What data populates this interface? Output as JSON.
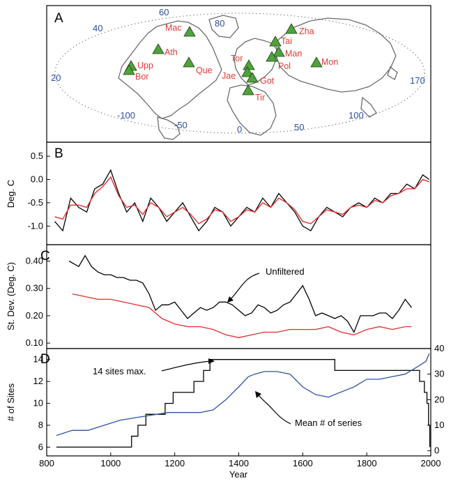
{
  "panels": {
    "a_letter": "A",
    "b_letter": "B",
    "c_letter": "C",
    "d_letter": "D"
  },
  "map": {
    "graticule_labels": [
      "60",
      "80",
      "40",
      "20",
      "170",
      "-100",
      "-50",
      "0",
      "50",
      "100"
    ],
    "sites": [
      "Mac",
      "Zha",
      "Ath",
      "Tai",
      "Man",
      "Upp",
      "Bor",
      "Que",
      "Tor",
      "Jae",
      "Pol",
      "Mon",
      "Got",
      "Tir"
    ],
    "marker_color": "#4fa33b",
    "label_color": "#e23a35",
    "number_color": "#2a4fa0"
  },
  "chart_data": [
    {
      "panel": "B",
      "type": "line",
      "ylabel": "Deg. C",
      "xlim": [
        800,
        2000
      ],
      "ylim": [
        -1.4,
        0.8
      ],
      "yticks": [
        "0.5",
        "0.0",
        "-0.5",
        "-1.0"
      ],
      "series": [
        {
          "color": "#000000",
          "x": [
            825,
            850,
            875,
            900,
            925,
            950,
            975,
            1000,
            1025,
            1050,
            1075,
            1100,
            1125,
            1150,
            1175,
            1200,
            1225,
            1250,
            1275,
            1300,
            1325,
            1350,
            1375,
            1400,
            1425,
            1450,
            1475,
            1500,
            1525,
            1550,
            1575,
            1600,
            1625,
            1650,
            1675,
            1700,
            1725,
            1750,
            1775,
            1800,
            1825,
            1850,
            1875,
            1900,
            1925,
            1950,
            1975,
            1995
          ],
          "y": [
            -0.9,
            -1.1,
            -0.4,
            -0.6,
            -0.7,
            -0.2,
            -0.1,
            0.2,
            -0.3,
            -0.7,
            -0.5,
            -0.9,
            -0.4,
            -0.6,
            -0.9,
            -0.7,
            -0.5,
            -0.8,
            -1.1,
            -0.9,
            -0.6,
            -0.7,
            -1.0,
            -0.8,
            -0.6,
            -0.7,
            -0.4,
            -0.6,
            -0.3,
            -0.5,
            -0.7,
            -1.0,
            -1.1,
            -0.8,
            -0.6,
            -0.7,
            -0.8,
            -0.6,
            -0.5,
            -0.6,
            -0.4,
            -0.5,
            -0.3,
            -0.3,
            -0.1,
            -0.2,
            0.1,
            0.0
          ]
        },
        {
          "color": "#e32d2d",
          "x": [
            825,
            850,
            875,
            900,
            925,
            950,
            975,
            1000,
            1025,
            1050,
            1075,
            1100,
            1125,
            1150,
            1175,
            1200,
            1225,
            1250,
            1275,
            1300,
            1325,
            1350,
            1375,
            1400,
            1425,
            1450,
            1475,
            1500,
            1525,
            1550,
            1575,
            1600,
            1625,
            1650,
            1675,
            1700,
            1725,
            1750,
            1775,
            1800,
            1825,
            1850,
            1875,
            1900,
            1925,
            1950,
            1975,
            1995
          ],
          "y": [
            -0.8,
            -0.85,
            -0.55,
            -0.55,
            -0.6,
            -0.3,
            -0.15,
            0.05,
            -0.35,
            -0.6,
            -0.55,
            -0.75,
            -0.5,
            -0.6,
            -0.8,
            -0.7,
            -0.6,
            -0.75,
            -0.95,
            -0.85,
            -0.65,
            -0.7,
            -0.9,
            -0.8,
            -0.65,
            -0.7,
            -0.5,
            -0.6,
            -0.4,
            -0.5,
            -0.65,
            -0.9,
            -0.95,
            -0.8,
            -0.65,
            -0.7,
            -0.75,
            -0.6,
            -0.55,
            -0.6,
            -0.45,
            -0.5,
            -0.35,
            -0.3,
            -0.2,
            -0.2,
            0.0,
            -0.05
          ]
        }
      ]
    },
    {
      "panel": "C",
      "type": "line",
      "ylabel": "St. Dev. (Deg. C)",
      "xlim": [
        800,
        2000
      ],
      "ylim": [
        0.08,
        0.46
      ],
      "yticks": [
        "0.40",
        "0.30",
        "0.20",
        "0.10"
      ],
      "annotation": "Unfiltered",
      "series": [
        {
          "color": "#000000",
          "x": [
            870,
            900,
            920,
            940,
            960,
            980,
            1000,
            1020,
            1040,
            1060,
            1080,
            1100,
            1120,
            1140,
            1160,
            1180,
            1200,
            1220,
            1240,
            1260,
            1280,
            1300,
            1320,
            1340,
            1360,
            1380,
            1400,
            1420,
            1440,
            1460,
            1480,
            1500,
            1520,
            1540,
            1560,
            1580,
            1600,
            1620,
            1640,
            1660,
            1680,
            1700,
            1720,
            1740,
            1760,
            1780,
            1800,
            1820,
            1840,
            1860,
            1880,
            1900,
            1920,
            1940
          ],
          "y": [
            0.4,
            0.38,
            0.42,
            0.38,
            0.36,
            0.35,
            0.35,
            0.34,
            0.34,
            0.33,
            0.33,
            0.32,
            0.28,
            0.22,
            0.24,
            0.24,
            0.25,
            0.22,
            0.19,
            0.21,
            0.23,
            0.22,
            0.23,
            0.25,
            0.25,
            0.24,
            0.22,
            0.2,
            0.21,
            0.24,
            0.23,
            0.21,
            0.22,
            0.24,
            0.25,
            0.28,
            0.31,
            0.26,
            0.2,
            0.21,
            0.2,
            0.19,
            0.2,
            0.18,
            0.14,
            0.2,
            0.2,
            0.2,
            0.21,
            0.21,
            0.19,
            0.22,
            0.26,
            0.23
          ]
        },
        {
          "color": "#e32d2d",
          "x": [
            880,
            920,
            960,
            1000,
            1040,
            1080,
            1120,
            1160,
            1200,
            1240,
            1280,
            1320,
            1360,
            1400,
            1440,
            1480,
            1520,
            1560,
            1600,
            1640,
            1680,
            1720,
            1760,
            1800,
            1840,
            1880,
            1920,
            1940
          ],
          "y": [
            0.28,
            0.27,
            0.26,
            0.26,
            0.25,
            0.24,
            0.23,
            0.19,
            0.17,
            0.16,
            0.16,
            0.15,
            0.13,
            0.12,
            0.13,
            0.14,
            0.14,
            0.15,
            0.15,
            0.15,
            0.16,
            0.14,
            0.13,
            0.15,
            0.16,
            0.15,
            0.16,
            0.16
          ]
        }
      ]
    },
    {
      "panel": "D",
      "type": "line",
      "ylabel": "# of Sites",
      "xlabel": "Year",
      "xlim": [
        800,
        2000
      ],
      "xticks": [
        "800",
        "1000",
        "1200",
        "1400",
        "1600",
        "1800",
        "2000"
      ],
      "ylim": [
        5.2,
        15.0
      ],
      "yticks": [
        "14",
        "12",
        "10",
        "8",
        "6"
      ],
      "y2lim": [
        -2,
        40
      ],
      "y2ticks": [
        "40",
        "30",
        "20",
        "10",
        "0"
      ],
      "annotations": [
        "14 sites max.",
        "Mean # of series"
      ],
      "series": [
        {
          "axis": "left",
          "color": "#000000",
          "step": true,
          "x": [
            830,
            1065,
            1085,
            1110,
            1170,
            1195,
            1260,
            1290,
            1310,
            1325,
            1335,
            1350,
            1700,
            1900,
            1965,
            1980,
            1988,
            1993,
            1997
          ],
          "y": [
            6,
            7,
            8,
            9,
            10,
            11,
            12,
            13,
            14,
            14,
            14,
            14,
            13,
            13,
            12,
            11,
            10,
            8,
            6
          ]
        },
        {
          "axis": "right",
          "color": "#2e50a5",
          "x": [
            830,
            880,
            930,
            980,
            1030,
            1080,
            1130,
            1180,
            1230,
            1280,
            1320,
            1360,
            1400,
            1430,
            1450,
            1480,
            1520,
            1560,
            1600,
            1640,
            1680,
            1720,
            1760,
            1800,
            1840,
            1880,
            1920,
            1960,
            1985,
            1995
          ],
          "y": [
            6,
            8,
            8,
            10,
            12,
            13,
            14,
            15,
            15,
            15,
            16,
            20,
            25,
            29,
            30,
            31,
            31,
            30,
            25,
            22,
            21,
            23,
            25,
            28,
            28,
            29,
            30,
            33,
            35,
            38
          ]
        }
      ]
    }
  ]
}
